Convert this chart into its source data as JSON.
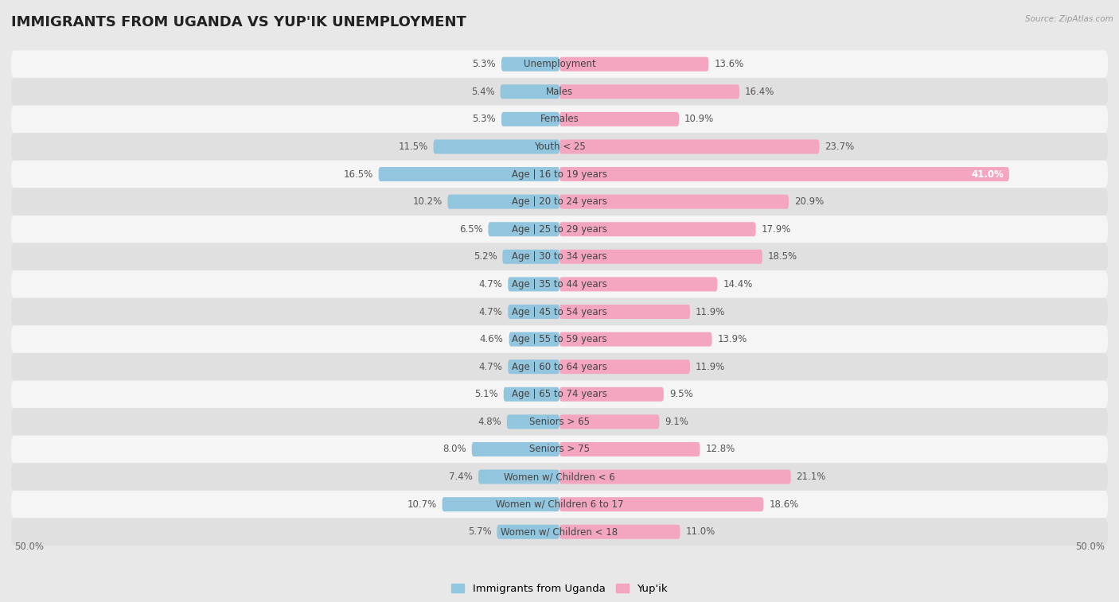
{
  "title": "IMMIGRANTS FROM UGANDA VS YUP'IK UNEMPLOYMENT",
  "source": "Source: ZipAtlas.com",
  "categories": [
    "Unemployment",
    "Males",
    "Females",
    "Youth < 25",
    "Age | 16 to 19 years",
    "Age | 20 to 24 years",
    "Age | 25 to 29 years",
    "Age | 30 to 34 years",
    "Age | 35 to 44 years",
    "Age | 45 to 54 years",
    "Age | 55 to 59 years",
    "Age | 60 to 64 years",
    "Age | 65 to 74 years",
    "Seniors > 65",
    "Seniors > 75",
    "Women w/ Children < 6",
    "Women w/ Children 6 to 17",
    "Women w/ Children < 18"
  ],
  "left_values": [
    5.3,
    5.4,
    5.3,
    11.5,
    16.5,
    10.2,
    6.5,
    5.2,
    4.7,
    4.7,
    4.6,
    4.7,
    5.1,
    4.8,
    8.0,
    7.4,
    10.7,
    5.7
  ],
  "right_values": [
    13.6,
    16.4,
    10.9,
    23.7,
    41.0,
    20.9,
    17.9,
    18.5,
    14.4,
    11.9,
    13.9,
    11.9,
    9.5,
    9.1,
    12.8,
    21.1,
    18.6,
    11.0
  ],
  "left_color": "#92c5de",
  "right_color": "#f4a6c0",
  "left_color_dark": "#5a9fbf",
  "right_color_dark": "#e8608a",
  "axis_label_left": "50.0%",
  "axis_label_right": "50.0%",
  "legend_left": "Immigrants from Uganda",
  "legend_right": "Yup'ik",
  "bg_color": "#e8e8e8",
  "row_bg_light": "#f5f5f5",
  "row_bg_dark": "#e0e0e0",
  "max_scale": 50.0,
  "bar_height": 0.52,
  "title_fontsize": 13,
  "label_fontsize": 8.5,
  "value_fontsize": 8.5
}
